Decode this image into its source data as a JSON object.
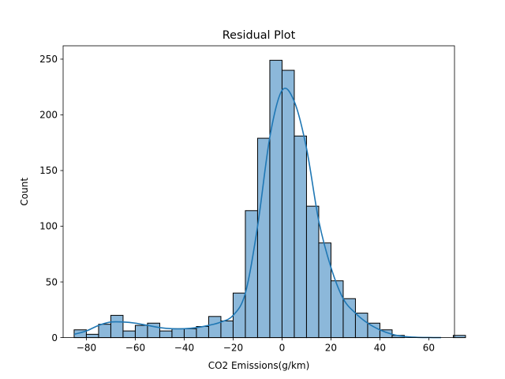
{
  "chart_data": {
    "type": "bar",
    "subtype": "histogram-with-kde",
    "title": "Residual Plot",
    "xlabel": "CO2 Emissions(g/km)",
    "ylabel": "Count",
    "xlim": [
      -89.5,
      70.5
    ],
    "ylim": [
      0,
      262
    ],
    "xticks": [
      -80,
      -60,
      -40,
      -20,
      0,
      20,
      40,
      60
    ],
    "yticks": [
      0,
      50,
      100,
      150,
      200,
      250
    ],
    "bin_start": -85,
    "bin_width": 5,
    "counts": [
      7,
      3,
      12,
      20,
      6,
      11,
      13,
      6,
      8,
      8,
      10,
      19,
      15,
      40,
      114,
      179,
      249,
      240,
      181,
      118,
      85,
      51,
      35,
      22,
      13,
      7,
      2,
      0,
      0,
      0,
      0,
      2
    ],
    "kde": {
      "x": [
        -85,
        -80,
        -75,
        -70,
        -65,
        -60,
        -55,
        -50,
        -45,
        -40,
        -35,
        -30,
        -25,
        -20,
        -15,
        -10,
        -5,
        0,
        5,
        10,
        15,
        20,
        25,
        30,
        35,
        40,
        45,
        50,
        55,
        60,
        65
      ],
      "y": [
        3,
        6,
        11,
        14,
        14,
        13,
        11,
        9,
        8,
        8,
        9,
        11,
        14,
        20,
        40,
        100,
        180,
        222,
        212,
        170,
        105,
        63,
        35,
        22,
        13,
        7,
        3,
        1,
        0.3,
        0.1,
        0
      ]
    },
    "grid": false,
    "legend": "none",
    "colors": {
      "bar_fill": "#8cb8da",
      "bar_edge": "#000000",
      "kde_line": "#1f77b4"
    }
  }
}
